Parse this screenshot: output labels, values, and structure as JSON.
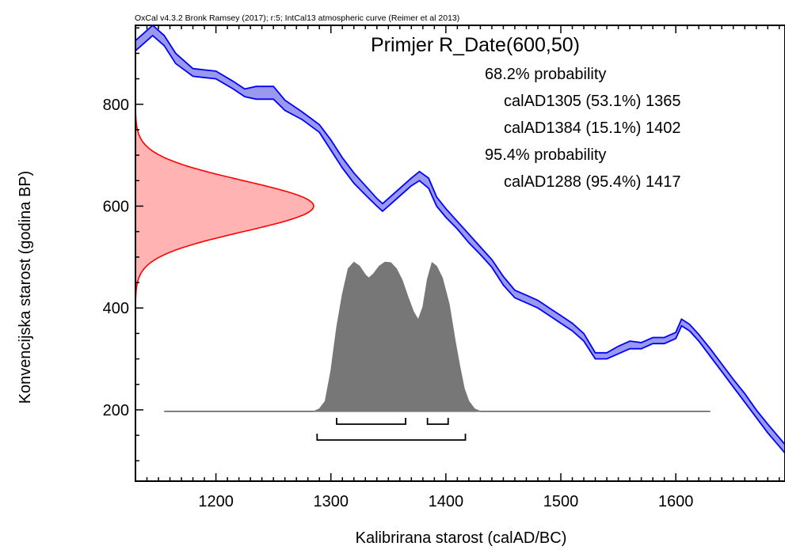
{
  "chart_data": {
    "type": "area",
    "credit": "OxCal v4.3.2 Bronk Ramsey (2017); r:5; IntCal13 atmospheric curve (Reimer et al 2013)",
    "title": "Primjer R_Date(600,50)",
    "xlabel": "Kalibrirana starost (calAD/BC)",
    "ylabel": "Konvencijska starost (godina BP)",
    "xlim": [
      1130,
      1695
    ],
    "ylim": [
      60,
      955
    ],
    "xticks": [
      1200,
      1300,
      1400,
      1500,
      1600
    ],
    "yticks": [
      200,
      400,
      600,
      800
    ],
    "legend": {
      "lines": [
        {
          "text": "68.2% probability",
          "indent": false
        },
        {
          "text": "calAD1305 (53.1%) 1365",
          "indent": true
        },
        {
          "text": "calAD1384 (15.1%) 1402",
          "indent": true
        },
        {
          "text": "95.4% probability",
          "indent": false
        },
        {
          "text": "calAD1288 (95.4%) 1417",
          "indent": true
        }
      ]
    },
    "radiocarbon_date": {
      "mean": 600,
      "sigma": 50,
      "color": "#ff0000",
      "fill": "#ffb3b3"
    },
    "calibration_curve": {
      "name": "IntCal13",
      "color": "#0000ff",
      "fill": "#9999ee",
      "points": [
        {
          "x": 1130,
          "lo": 905,
          "hi": 925
        },
        {
          "x": 1140,
          "lo": 925,
          "hi": 945
        },
        {
          "x": 1145,
          "lo": 935,
          "hi": 955
        },
        {
          "x": 1155,
          "lo": 915,
          "hi": 935
        },
        {
          "x": 1165,
          "lo": 880,
          "hi": 900
        },
        {
          "x": 1180,
          "lo": 855,
          "hi": 870
        },
        {
          "x": 1200,
          "lo": 850,
          "hi": 865
        },
        {
          "x": 1215,
          "lo": 830,
          "hi": 845
        },
        {
          "x": 1225,
          "lo": 815,
          "hi": 830
        },
        {
          "x": 1235,
          "lo": 810,
          "hi": 835
        },
        {
          "x": 1250,
          "lo": 810,
          "hi": 835
        },
        {
          "x": 1260,
          "lo": 788,
          "hi": 808
        },
        {
          "x": 1275,
          "lo": 770,
          "hi": 785
        },
        {
          "x": 1290,
          "lo": 745,
          "hi": 760
        },
        {
          "x": 1300,
          "lo": 710,
          "hi": 730
        },
        {
          "x": 1310,
          "lo": 675,
          "hi": 695
        },
        {
          "x": 1320,
          "lo": 645,
          "hi": 665
        },
        {
          "x": 1330,
          "lo": 622,
          "hi": 640
        },
        {
          "x": 1340,
          "lo": 600,
          "hi": 615
        },
        {
          "x": 1345,
          "lo": 590,
          "hi": 605
        },
        {
          "x": 1350,
          "lo": 600,
          "hi": 615
        },
        {
          "x": 1360,
          "lo": 620,
          "hi": 635
        },
        {
          "x": 1370,
          "lo": 640,
          "hi": 655
        },
        {
          "x": 1377,
          "lo": 650,
          "hi": 668
        },
        {
          "x": 1385,
          "lo": 635,
          "hi": 655
        },
        {
          "x": 1392,
          "lo": 600,
          "hi": 618
        },
        {
          "x": 1400,
          "lo": 578,
          "hi": 595
        },
        {
          "x": 1410,
          "lo": 555,
          "hi": 570
        },
        {
          "x": 1420,
          "lo": 528,
          "hi": 545
        },
        {
          "x": 1430,
          "lo": 505,
          "hi": 520
        },
        {
          "x": 1440,
          "lo": 480,
          "hi": 495
        },
        {
          "x": 1450,
          "lo": 445,
          "hi": 462
        },
        {
          "x": 1460,
          "lo": 420,
          "hi": 435
        },
        {
          "x": 1470,
          "lo": 410,
          "hi": 425
        },
        {
          "x": 1480,
          "lo": 400,
          "hi": 415
        },
        {
          "x": 1490,
          "lo": 385,
          "hi": 400
        },
        {
          "x": 1500,
          "lo": 370,
          "hi": 385
        },
        {
          "x": 1510,
          "lo": 355,
          "hi": 370
        },
        {
          "x": 1520,
          "lo": 335,
          "hi": 350
        },
        {
          "x": 1530,
          "lo": 300,
          "hi": 312
        },
        {
          "x": 1540,
          "lo": 300,
          "hi": 312
        },
        {
          "x": 1550,
          "lo": 310,
          "hi": 325
        },
        {
          "x": 1560,
          "lo": 320,
          "hi": 335
        },
        {
          "x": 1570,
          "lo": 320,
          "hi": 332
        },
        {
          "x": 1580,
          "lo": 330,
          "hi": 342
        },
        {
          "x": 1590,
          "lo": 330,
          "hi": 342
        },
        {
          "x": 1600,
          "lo": 340,
          "hi": 352
        },
        {
          "x": 1605,
          "lo": 365,
          "hi": 378
        },
        {
          "x": 1612,
          "lo": 355,
          "hi": 368
        },
        {
          "x": 1620,
          "lo": 335,
          "hi": 348
        },
        {
          "x": 1630,
          "lo": 305,
          "hi": 320
        },
        {
          "x": 1640,
          "lo": 275,
          "hi": 290
        },
        {
          "x": 1650,
          "lo": 245,
          "hi": 260
        },
        {
          "x": 1660,
          "lo": 215,
          "hi": 232
        },
        {
          "x": 1670,
          "lo": 185,
          "hi": 200
        },
        {
          "x": 1680,
          "lo": 155,
          "hi": 172
        },
        {
          "x": 1695,
          "lo": 115,
          "hi": 132
        }
      ]
    },
    "posterior": {
      "color": "#777777",
      "baseline_y": 197,
      "baseline_x": [
        1155,
        1630
      ],
      "points": [
        [
          1285,
          0
        ],
        [
          1290,
          5
        ],
        [
          1295,
          20
        ],
        [
          1300,
          80
        ],
        [
          1305,
          165
        ],
        [
          1310,
          230
        ],
        [
          1315,
          280
        ],
        [
          1320,
          293
        ],
        [
          1325,
          285
        ],
        [
          1330,
          268
        ],
        [
          1333,
          262
        ],
        [
          1337,
          270
        ],
        [
          1342,
          285
        ],
        [
          1347,
          293
        ],
        [
          1352,
          292
        ],
        [
          1357,
          280
        ],
        [
          1362,
          258
        ],
        [
          1367,
          225
        ],
        [
          1372,
          195
        ],
        [
          1376,
          180
        ],
        [
          1380,
          205
        ],
        [
          1384,
          260
        ],
        [
          1388,
          292
        ],
        [
          1392,
          285
        ],
        [
          1397,
          262
        ],
        [
          1403,
          210
        ],
        [
          1408,
          140
        ],
        [
          1412,
          90
        ],
        [
          1416,
          45
        ],
        [
          1420,
          20
        ],
        [
          1425,
          5
        ],
        [
          1430,
          0
        ]
      ]
    },
    "ranges_68": [
      [
        1305,
        1365
      ],
      [
        1384,
        1402
      ]
    ],
    "ranges_95": [
      [
        1288,
        1417
      ]
    ]
  }
}
